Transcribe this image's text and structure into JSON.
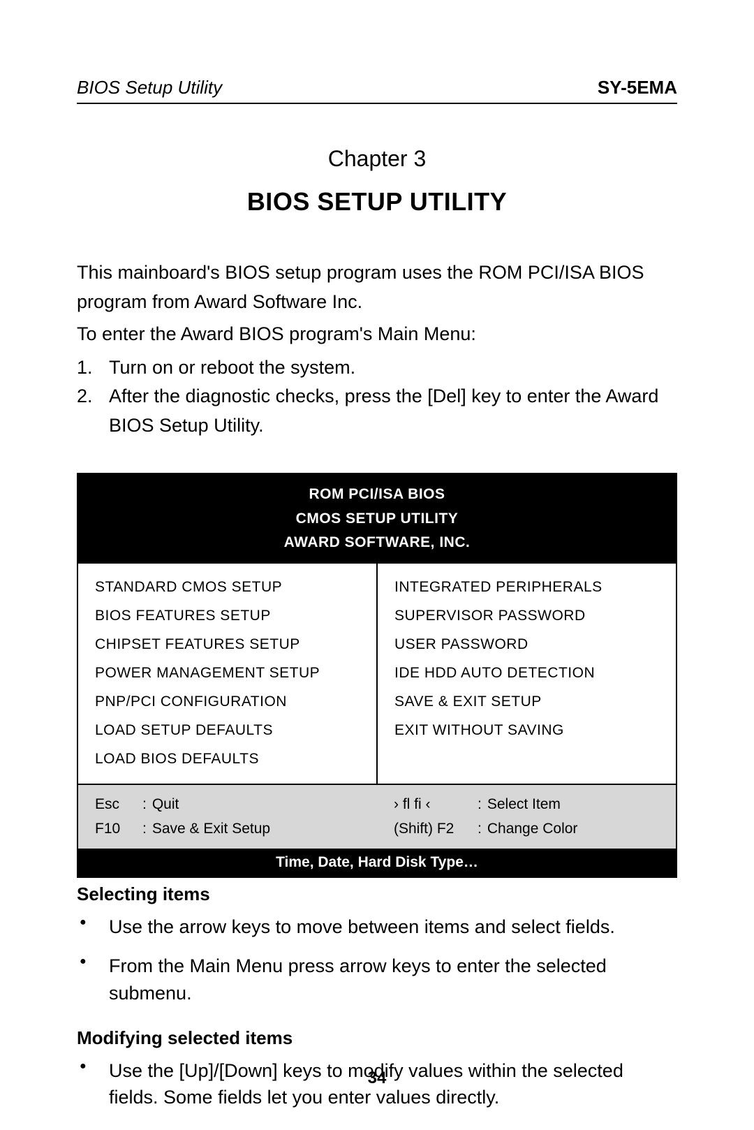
{
  "header": {
    "left": "BIOS Setup Utility",
    "right": "SY-5EMA"
  },
  "chapter": {
    "line": "Chapter 3",
    "title": "BIOS SETUP UTILITY"
  },
  "intro": {
    "p1": "This mainboard's BIOS setup program uses the ROM PCI/ISA BIOS program from Award Software Inc.",
    "p2": "To enter the Award BIOS program's Main Menu:",
    "steps": [
      "Turn on or reboot the system.",
      "After the diagnostic checks, press the [Del] key to enter the Award BIOS Setup Utility."
    ]
  },
  "bios": {
    "header_lines": [
      "ROM PCI/ISA BIOS",
      "CMOS SETUP UTILITY",
      "AWARD SOFTWARE, INC."
    ],
    "left_col": [
      "STANDARD CMOS SETUP",
      "BIOS FEATURES SETUP",
      "CHIPSET FEATURES SETUP",
      "POWER MANAGEMENT SETUP",
      "PNP/PCI CONFIGURATION",
      "LOAD SETUP DEFAULTS",
      "LOAD BIOS DEFAULTS"
    ],
    "right_col": [
      "INTEGRATED PERIPHERALS",
      "SUPERVISOR PASSWORD",
      "USER PASSWORD",
      "IDE HDD AUTO DETECTION",
      "SAVE & EXIT SETUP",
      "EXIT WITHOUT SAVING"
    ],
    "keys": {
      "left": [
        {
          "key": "Esc",
          "action": "Quit"
        },
        {
          "key": "F10",
          "action": "Save & Exit Setup"
        }
      ],
      "right": [
        {
          "key": "›  fl fi  ‹",
          "action": "Select Item"
        },
        {
          "key": "(Shift) F2",
          "action": "Change Color"
        }
      ]
    },
    "footer": "Time, Date, Hard Disk Type…"
  },
  "sections": {
    "selecting": {
      "title": "Selecting items",
      "bullets": [
        "Use the arrow keys to move between items and select fields.",
        "From the Main Menu press arrow keys to enter the selected submenu."
      ]
    },
    "modifying": {
      "title": "Modifying selected items",
      "bullets": [
        "Use the [Up]/[Down] keys to modify values within the selected fields. Some fields let you enter values directly."
      ]
    }
  },
  "page_number": "34",
  "colors": {
    "bg": "#ffffff",
    "text": "#000000",
    "bios_header_bg": "#000000",
    "bios_header_fg": "#ffffff",
    "bios_keys_bg": "#d7d7d7"
  }
}
